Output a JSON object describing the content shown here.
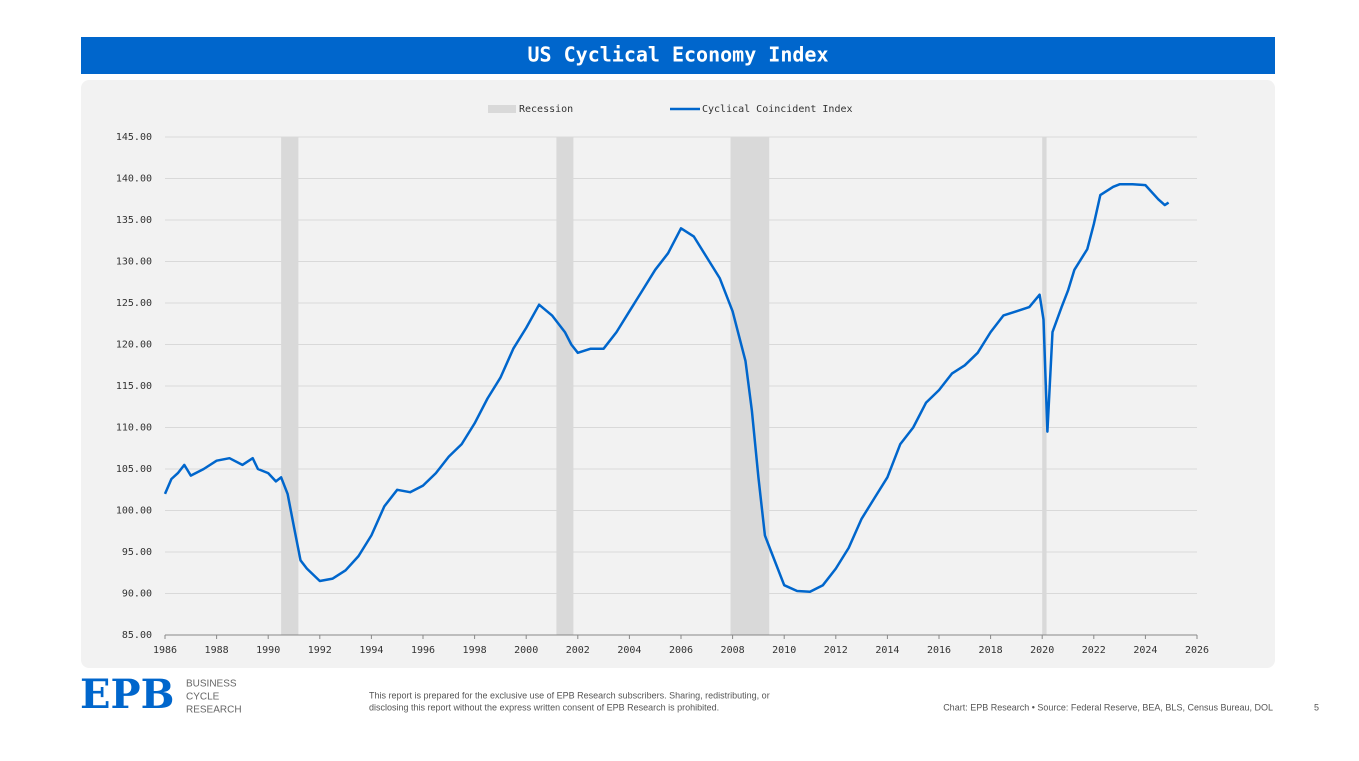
{
  "chart_data": {
    "type": "line",
    "title": "US Cyclical Economy Index",
    "x": [
      1986.0,
      1986.25,
      1986.5,
      1986.75,
      1987.0,
      1987.5,
      1988.0,
      1988.5,
      1989.0,
      1989.4,
      1989.6,
      1990.0,
      1990.3,
      1990.5,
      1990.75,
      1991.0,
      1991.25,
      1991.5,
      1992.0,
      1992.5,
      1993.0,
      1993.5,
      1994.0,
      1994.5,
      1995.0,
      1995.5,
      1996.0,
      1996.5,
      1997.0,
      1997.5,
      1998.0,
      1998.5,
      1999.0,
      1999.5,
      2000.0,
      2000.5,
      2001.0,
      2001.5,
      2001.75,
      2002.0,
      2002.5,
      2003.0,
      2003.5,
      2004.0,
      2004.5,
      2005.0,
      2005.5,
      2006.0,
      2006.5,
      2007.0,
      2007.5,
      2008.0,
      2008.5,
      2008.75,
      2009.0,
      2009.25,
      2009.5,
      2010.0,
      2010.5,
      2011.0,
      2011.5,
      2012.0,
      2012.5,
      2013.0,
      2013.5,
      2014.0,
      2014.5,
      2015.0,
      2015.5,
      2016.0,
      2016.5,
      2017.0,
      2017.5,
      2018.0,
      2018.5,
      2019.0,
      2019.5,
      2019.9,
      2020.05,
      2020.2,
      2020.4,
      2020.75,
      2021.0,
      2021.25,
      2021.75,
      2022.0,
      2022.25,
      2022.75,
      2023.0,
      2023.5,
      2024.0,
      2024.5,
      2024.75,
      2024.9
    ],
    "series": [
      {
        "name": "Cyclical Coincident Index",
        "color": "#0066cc",
        "values": [
          102,
          103.8,
          104.5,
          105.5,
          104.2,
          105,
          106,
          106.3,
          105.5,
          106.3,
          105,
          104.5,
          103.5,
          104,
          102,
          98,
          94,
          93,
          91.5,
          91.8,
          92.8,
          94.5,
          97,
          100.5,
          102.5,
          102.2,
          103,
          104.5,
          106.5,
          108,
          110.5,
          113.5,
          116,
          119.5,
          122,
          124.8,
          123.5,
          121.5,
          120,
          119,
          119.5,
          119.5,
          121.5,
          124,
          126.5,
          129,
          131,
          134,
          133,
          130.5,
          128,
          124,
          118,
          112,
          104,
          97,
          95,
          91,
          90.3,
          90.2,
          91,
          93,
          95.5,
          99,
          101.5,
          104,
          108,
          110,
          113,
          114.5,
          116.5,
          117.5,
          119,
          121.5,
          123.5,
          124,
          124.5,
          126,
          123,
          109.5,
          121.5,
          124.5,
          126.5,
          129,
          131.5,
          134.5,
          138,
          139,
          139.3,
          139.3,
          139.2,
          137.5,
          136.8,
          137.1
        ]
      }
    ],
    "recessions": {
      "name": "Recession",
      "color": "#d9d9d9",
      "spans": [
        [
          1990.5,
          1991.17
        ],
        [
          2001.17,
          2001.83
        ],
        [
          2007.92,
          2009.42
        ],
        [
          2020.0,
          2020.17
        ]
      ]
    },
    "xlim": [
      1986,
      2026
    ],
    "xticks": [
      1986,
      1988,
      1990,
      1992,
      1994,
      1996,
      1998,
      2000,
      2002,
      2004,
      2006,
      2008,
      2010,
      2012,
      2014,
      2016,
      2018,
      2020,
      2022,
      2024,
      2026
    ],
    "ylim": [
      85,
      145
    ],
    "yticks": [
      {
        "value": 85,
        "label": "85.00"
      },
      {
        "value": 90,
        "label": "90.00"
      },
      {
        "value": 95,
        "label": "95.00"
      },
      {
        "value": 100,
        "label": "100.00"
      },
      {
        "value": 105,
        "label": "105.00"
      },
      {
        "value": 110,
        "label": "110.00"
      },
      {
        "value": 115,
        "label": "115.00"
      },
      {
        "value": 120,
        "label": "120.00"
      },
      {
        "value": 125,
        "label": "125.00"
      },
      {
        "value": 130,
        "label": "130.00"
      },
      {
        "value": 135,
        "label": "135.00"
      },
      {
        "value": 140,
        "label": "140.00"
      },
      {
        "value": 145,
        "label": "145.00"
      }
    ],
    "grid": true,
    "legend": "top"
  },
  "footer": {
    "logo": "EPB",
    "brand": [
      "BUSINESS",
      "CYCLE",
      "RESEARCH"
    ],
    "disclaimer": [
      "This report is prepared for the exclusive use of EPB Research subscribers. Sharing, redistributing, or",
      "disclosing this report without the express written consent of EPB Research is prohibited."
    ],
    "source": "Chart: EPB Research  •  Source: Federal Reserve, BEA, BLS, Census Bureau, DOL",
    "page": "5"
  }
}
